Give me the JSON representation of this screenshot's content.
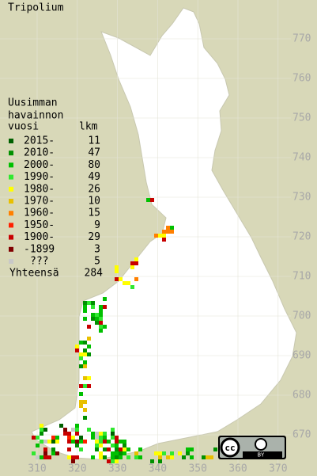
{
  "title": "Tripolium",
  "legend": {
    "heading": [
      "Uusimman",
      "havainnon"
    ],
    "col_year": "vuosi",
    "col_count": "lkm",
    "entries": [
      {
        "label": "2015-",
        "count": 11,
        "color": "#006000"
      },
      {
        "label": "2010-",
        "count": 47,
        "color": "#009000"
      },
      {
        "label": "2000-",
        "count": 80,
        "color": "#00c000"
      },
      {
        "label": "1990-",
        "count": 49,
        "color": "#30e830"
      },
      {
        "label": "1980-",
        "count": 26,
        "color": "#ffff00"
      },
      {
        "label": "1970-",
        "count": 10,
        "color": "#e8c000"
      },
      {
        "label": "1960-",
        "count": 15,
        "color": "#ff8000"
      },
      {
        "label": "1950-",
        "count": 9,
        "color": "#ff2000"
      },
      {
        "label": "1900-",
        "count": 29,
        "color": "#c80000"
      },
      {
        "label": "-1899",
        "count": 3,
        "color": "#800000"
      },
      {
        "label": "???",
        "count": 5,
        "color": "#c8c8c8"
      }
    ],
    "total_label": "Yhteensä",
    "total": 284
  },
  "x_axis": {
    "ticks": [
      310,
      320,
      330,
      340,
      350,
      360,
      370
    ]
  },
  "y_axis": {
    "ticks": [
      670,
      680,
      690,
      700,
      710,
      720,
      730,
      740,
      750,
      760,
      770
    ]
  },
  "license": {
    "cc": "cc",
    "by": "BY"
  }
}
